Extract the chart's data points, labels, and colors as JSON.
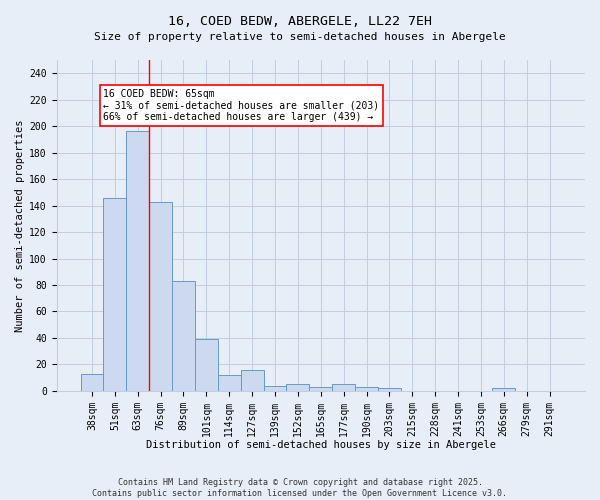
{
  "title": "16, COED BEDW, ABERGELE, LL22 7EH",
  "subtitle": "Size of property relative to semi-detached houses in Abergele",
  "xlabel": "Distribution of semi-detached houses by size in Abergele",
  "ylabel": "Number of semi-detached properties",
  "categories": [
    "38sqm",
    "51sqm",
    "63sqm",
    "76sqm",
    "89sqm",
    "101sqm",
    "114sqm",
    "127sqm",
    "139sqm",
    "152sqm",
    "165sqm",
    "177sqm",
    "190sqm",
    "203sqm",
    "215sqm",
    "228sqm",
    "241sqm",
    "253sqm",
    "266sqm",
    "279sqm",
    "291sqm"
  ],
  "values": [
    13,
    146,
    196,
    143,
    83,
    39,
    12,
    16,
    4,
    5,
    3,
    5,
    3,
    2,
    0,
    0,
    0,
    0,
    2,
    0,
    0
  ],
  "bar_color": "#ccd9ee",
  "bar_edge_color": "#6699cc",
  "grid_color": "#c0cfe0",
  "bg_color": "#e8eef8",
  "vline_x": 2.5,
  "vline_color": "red",
  "annotation_text": "16 COED BEDW: 65sqm\n← 31% of semi-detached houses are smaller (203)\n66% of semi-detached houses are larger (439) →",
  "annotation_box_color": "white",
  "annotation_box_edge": "red",
  "ylim": [
    0,
    250
  ],
  "yticks": [
    0,
    20,
    40,
    60,
    80,
    100,
    120,
    140,
    160,
    180,
    200,
    220,
    240
  ],
  "footer": "Contains HM Land Registry data © Crown copyright and database right 2025.\nContains public sector information licensed under the Open Government Licence v3.0.",
  "title_fontsize": 9.5,
  "subtitle_fontsize": 8,
  "tick_fontsize": 7,
  "ylabel_fontsize": 7.5,
  "xlabel_fontsize": 7.5,
  "annotation_fontsize": 7,
  "footer_fontsize": 6
}
